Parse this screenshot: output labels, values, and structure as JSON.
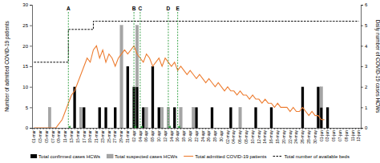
{
  "chart_data": {
    "type": "bar",
    "stacked": true,
    "legend": "bottom",
    "y_label": "Number of admitted COVID-19 patients",
    "y2_label": "Daily number of COVID-19 cases HCWs",
    "ylim": [
      0,
      30
    ],
    "yticks": [
      0,
      5,
      10,
      15,
      20,
      25,
      30
    ],
    "y2lim": [
      0,
      6
    ],
    "y2ticks": [
      0,
      1,
      2,
      3,
      4,
      5,
      6
    ],
    "categories": [
      "01-mar",
      null,
      "03-mar",
      null,
      "05-mar",
      null,
      "07-mar",
      null,
      "09-mar",
      null,
      "11-mar",
      null,
      "13-mar",
      null,
      "15-mar",
      null,
      "17-mar",
      null,
      "19-mar",
      null,
      "21-mar",
      null,
      "23-mar",
      null,
      "25-mar",
      null,
      "27-mar",
      null,
      "29-mar",
      null,
      "31-mar",
      null,
      "02-apr",
      null,
      "04-apr",
      null,
      "06-apr",
      null,
      "08-apr",
      null,
      "10-apr",
      null,
      "12-apr",
      null,
      "14-apr",
      null,
      "16-apr",
      null,
      "18-apr",
      null,
      "20-apr",
      null,
      "22-apr",
      null,
      "24-apr",
      null,
      "26-apr",
      null,
      "28-apr",
      null,
      "30-apr",
      null,
      "02-may",
      null,
      "04-may",
      null,
      "06-may",
      null,
      "08-may",
      null,
      "10-may",
      null,
      "12-may",
      null,
      "14-may",
      null,
      "16-may",
      null,
      "18-may",
      null,
      "20-may",
      null,
      "22-may",
      null,
      "24-may",
      null,
      "26-may",
      null,
      "28-may",
      null,
      "30-may",
      null,
      "01-jun",
      null,
      "03-jun",
      null,
      "05-jun",
      null,
      "07-jun",
      null,
      "09-jun",
      null,
      "11-jun",
      null,
      "13-jun"
    ],
    "series": [
      {
        "name": "Total confirmed cases HCWs",
        "type": "bar",
        "axis": "y2",
        "color": "#000000",
        "values": [
          0,
          0,
          0,
          0,
          0,
          0,
          0,
          0,
          0,
          0,
          0,
          0,
          0,
          2,
          0,
          0,
          1,
          0,
          0,
          0,
          0,
          1,
          0,
          1,
          0,
          0,
          1,
          0,
          0,
          0,
          3,
          0,
          2,
          2,
          0,
          1,
          0,
          0,
          3,
          0,
          1,
          0,
          0,
          0,
          0,
          1,
          0,
          0,
          0,
          0,
          0,
          0,
          1,
          0,
          0,
          0,
          0,
          1,
          0,
          0,
          0,
          0,
          0,
          1,
          0,
          0,
          0,
          0,
          0,
          0,
          0,
          1,
          0,
          0,
          0,
          0,
          1,
          0,
          0,
          0,
          0,
          0,
          0,
          0,
          0,
          0,
          2,
          0,
          0,
          0,
          0,
          2,
          1,
          0,
          1,
          0,
          0,
          0,
          0,
          0,
          0,
          0,
          0,
          0,
          0
        ]
      },
      {
        "name": "Total suspected cases HCWs",
        "type": "bar",
        "axis": "y2",
        "color": "#a5a5a5",
        "values": [
          0,
          0,
          0,
          0,
          0,
          1,
          0,
          0,
          0,
          0,
          0,
          0,
          0,
          0,
          0,
          1,
          0,
          0,
          0,
          0,
          0,
          0,
          0,
          0,
          0,
          0,
          0,
          0,
          5,
          0,
          0,
          0,
          0,
          3,
          0,
          0,
          1,
          0,
          0,
          0,
          0,
          1,
          0,
          1,
          0,
          0,
          0,
          1,
          0,
          0,
          0,
          1,
          0,
          0,
          0,
          0,
          0,
          0,
          0,
          0,
          0,
          0,
          0,
          0,
          0,
          0,
          1,
          0,
          0,
          0,
          0,
          0,
          0,
          0,
          0,
          0,
          0,
          0,
          0,
          0,
          0,
          0,
          0,
          0,
          0,
          0,
          0,
          0,
          0,
          0,
          0,
          0,
          1,
          0,
          0,
          0,
          0,
          0,
          0,
          0,
          0,
          0,
          0,
          0,
          0
        ]
      },
      {
        "name": "Total admitted COVID-19 patients",
        "type": "line",
        "color": "#ed7d31",
        "line_style": "solid",
        "values": [
          0,
          0,
          0,
          0,
          0,
          0,
          0,
          0,
          1,
          2,
          4,
          6,
          8,
          9,
          11,
          13,
          15,
          17,
          16,
          19,
          20,
          17,
          19,
          16,
          18,
          17,
          15,
          17,
          18,
          19,
          18,
          19,
          20,
          18,
          17,
          16,
          18,
          17,
          15,
          16,
          17,
          15,
          17,
          16,
          15,
          16,
          14,
          15,
          14,
          13,
          14,
          13,
          12,
          13,
          12,
          11,
          12,
          11,
          10,
          11,
          10,
          9,
          10,
          9,
          9,
          8,
          9,
          8,
          8,
          7,
          8,
          7,
          7,
          6,
          7,
          6,
          6,
          5,
          6,
          5,
          5,
          5,
          4,
          5,
          4,
          4,
          5,
          4,
          3,
          4,
          3,
          3,
          2,
          2,
          null,
          null,
          null,
          null,
          null,
          null,
          null,
          null,
          null,
          null,
          null
        ]
      },
      {
        "name": "Total number of available beds",
        "type": "line",
        "color": "#000000",
        "line_style": "dashed",
        "values": [
          16,
          16,
          16,
          16,
          16,
          16,
          16,
          16,
          16,
          16,
          16,
          24,
          24,
          24,
          24,
          24,
          24,
          24,
          24,
          26,
          26,
          26,
          26,
          26,
          26,
          26,
          26,
          26,
          26,
          26,
          26,
          26,
          26,
          26,
          26,
          26,
          26,
          26,
          26,
          26,
          26,
          26,
          26,
          26,
          26,
          26,
          26,
          26,
          26,
          26,
          26,
          26,
          26,
          26,
          26,
          26,
          26,
          26,
          26,
          26,
          26,
          26,
          26,
          26,
          26,
          26,
          26,
          26,
          26,
          26,
          26,
          26,
          26,
          26,
          26,
          26,
          26,
          26,
          26,
          26,
          26,
          26,
          26,
          26,
          26,
          26,
          26,
          26,
          26,
          26,
          26,
          26,
          26,
          26,
          26,
          26,
          26,
          26,
          26,
          26,
          26,
          26,
          26,
          26,
          26
        ]
      }
    ],
    "annotations": [
      {
        "label": "A",
        "x": 11
      },
      {
        "label": "B",
        "x": 32
      },
      {
        "label": "C",
        "x": 34
      },
      {
        "label": "D",
        "x": 43
      },
      {
        "label": "E",
        "x": 46
      }
    ]
  }
}
